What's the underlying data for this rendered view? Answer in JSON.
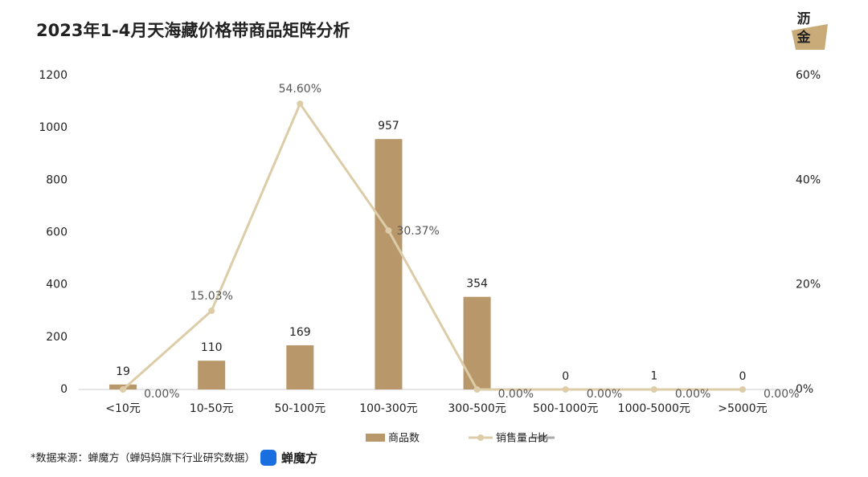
{
  "chart_data": {
    "type": "bar-line",
    "title": "2023年1-4月天海藏价格带商品矩阵分析",
    "categories": [
      "<10元",
      "10-50元",
      "50-100元",
      "100-300元",
      "300-500元",
      "500-1000元",
      "1000-5000元",
      ">5000元"
    ],
    "series": [
      {
        "name": "商品数",
        "type": "bar",
        "color": "#b8976a",
        "values": [
          19,
          110,
          169,
          957,
          354,
          0,
          1,
          0
        ]
      },
      {
        "name": "销售量占比",
        "type": "line",
        "axis": "y2",
        "color": "#dccca8",
        "values": [
          0,
          15.03,
          54.6,
          30.37,
          0,
          0,
          0,
          0
        ],
        "value_labels": [
          "0.00%",
          "15.03%",
          "54.60%",
          "30.37%",
          "0.00%",
          "0.00%",
          "0.00%",
          "0.00%"
        ]
      }
    ],
    "ylim": [
      0,
      1200
    ],
    "yticks": [
      0,
      200,
      400,
      600,
      800,
      1000,
      1200
    ],
    "y2lim": [
      0,
      60
    ],
    "y2ticks": [
      {
        "value": 0,
        "label": "0%"
      },
      {
        "value": 20,
        "label": "20%"
      },
      {
        "value": 40,
        "label": "40%"
      },
      {
        "value": 60,
        "label": "60%"
      }
    ],
    "legend": "bottom"
  },
  "footer": {
    "source": "*数据来源：蝉魔方（蝉妈妈旗下行业研究数据）",
    "brand": "蝉魔方"
  },
  "logo": {
    "line1": "沥",
    "line2": "金"
  }
}
